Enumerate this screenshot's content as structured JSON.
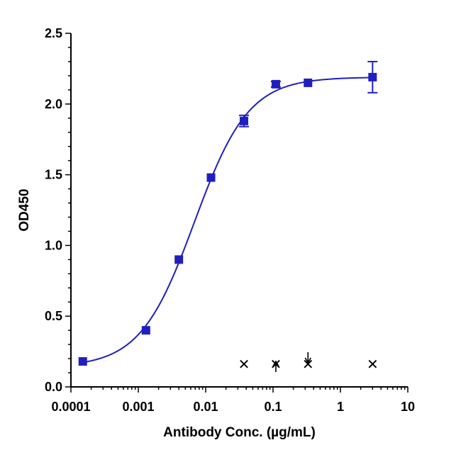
{
  "chart_data": {
    "type": "scatter",
    "xscale": "log",
    "xlim": [
      0.0001,
      10
    ],
    "ylim": [
      0,
      2.5
    ],
    "xlabel": "Antibody Conc. (µg/mL)",
    "ylabel": "OD450",
    "x_ticks": [
      {
        "value": 0.0001,
        "label": "0.0001"
      },
      {
        "value": 0.001,
        "label": "0.001"
      },
      {
        "value": 0.01,
        "label": "0.01"
      },
      {
        "value": 0.1,
        "label": "0.1"
      },
      {
        "value": 1,
        "label": "1"
      },
      {
        "value": 10,
        "label": "10"
      }
    ],
    "y_ticks": [
      {
        "value": 0,
        "label": "0.0"
      },
      {
        "value": 0.5,
        "label": "0.5"
      },
      {
        "value": 1,
        "label": "1.0"
      },
      {
        "value": 1.5,
        "label": "1.5"
      },
      {
        "value": 2,
        "label": "2.0"
      },
      {
        "value": 2.5,
        "label": "2.5"
      }
    ],
    "series": [
      {
        "marker": "square",
        "color": "#1f1fbf",
        "x": [
          0.00015,
          0.0013,
          0.004,
          0.012,
          0.037,
          0.11,
          0.33,
          3.0
        ],
        "y": [
          0.18,
          0.4,
          0.9,
          1.48,
          1.88,
          2.14,
          2.15,
          2.19
        ],
        "yerr": [
          0.0,
          0.0,
          0.0,
          0.0,
          0.04,
          0.02,
          0.0,
          0.11
        ]
      }
    ],
    "fit_curve": {
      "model": "4PL",
      "bottom": 0.14,
      "top": 2.19,
      "ec50": 0.0068,
      "hill": 1.08,
      "color": "#1f1fbf"
    },
    "markers": [
      {
        "x": 0.037,
        "y": 0.16,
        "glyph": "✕"
      },
      {
        "x": 0.11,
        "y": 0.16,
        "glyph": "✕"
      },
      {
        "x": 0.33,
        "y": 0.16,
        "glyph": "✕"
      },
      {
        "x": 3.0,
        "y": 0.16,
        "glyph": "✕"
      }
    ],
    "arrows": [
      {
        "x": 0.11,
        "direction": "up"
      },
      {
        "x": 0.33,
        "direction": "down"
      }
    ],
    "grid": false,
    "legend": "none"
  }
}
